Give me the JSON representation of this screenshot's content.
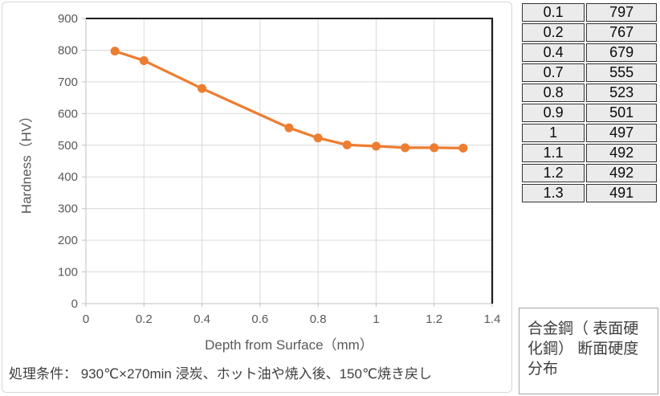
{
  "chart_data": {
    "type": "line",
    "title": "",
    "xlabel": "Depth from Surface（mm）",
    "ylabel": "Hardness（HV）",
    "x": [
      0.1,
      0.2,
      0.4,
      0.7,
      0.8,
      0.9,
      1,
      1.1,
      1.2,
      1.3
    ],
    "series": [
      {
        "name": "Hardness (HV)",
        "values": [
          797,
          767,
          679,
          555,
          523,
          501,
          497,
          492,
          492,
          491
        ]
      }
    ],
    "xlim": [
      0,
      1.4
    ],
    "ylim": [
      0,
      900
    ],
    "x_ticks": [
      0,
      0.2,
      0.4,
      0.6,
      0.8,
      1,
      1.2,
      1.4
    ],
    "x_tick_labels": [
      "0",
      "0.2",
      "0.4",
      "0.6",
      "0.8",
      "1",
      "1.2",
      "1.4"
    ],
    "y_ticks": [
      0,
      100,
      200,
      300,
      400,
      500,
      600,
      700,
      800,
      900
    ],
    "grid": true,
    "legend": "none",
    "line_color": "#ED7D31",
    "marker": "circle",
    "gridline_color": "#D9D9D9",
    "axis_line_color": "#BFBFBF",
    "border_color": "#1F1F1F",
    "tick_label_color": "#595959"
  },
  "caption": "処理条件： 930℃×270min 浸炭、ホット油や焼入後、150℃焼き戻し",
  "data_table": {
    "columns": [
      "depth_mm",
      "hardness_hv"
    ],
    "rows": [
      [
        "0.1",
        "797"
      ],
      [
        "0.2",
        "767"
      ],
      [
        "0.4",
        "679"
      ],
      [
        "0.7",
        "555"
      ],
      [
        "0.8",
        "523"
      ],
      [
        "0.9",
        "501"
      ],
      [
        "1",
        "497"
      ],
      [
        "1.1",
        "492"
      ],
      [
        "1.2",
        "492"
      ],
      [
        "1.3",
        "491"
      ]
    ]
  },
  "note_box": {
    "text": "合金鋼（ 表面硬\n化鋼） 断面硬度\n分布"
  }
}
